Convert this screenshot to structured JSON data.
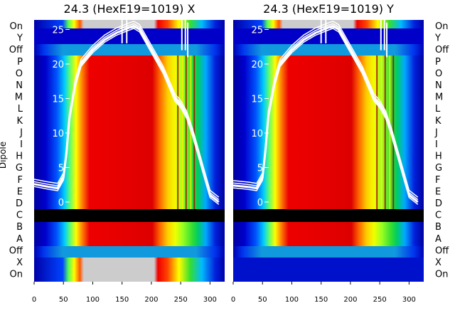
{
  "chart_data": [
    {
      "type": "heatmap",
      "title": "24.3 (HexE19=1019) X",
      "xlabel": "",
      "ylabel": "Dipole",
      "xlim": [
        0,
        325
      ],
      "xticks": [
        0,
        50,
        100,
        150,
        200,
        250,
        300
      ],
      "ylim": [
        -1.5,
        27
      ],
      "yticks": [
        0,
        5,
        10,
        15,
        20,
        25
      ],
      "dipole_rows": [
        "On",
        "Y",
        "Off",
        "P",
        "O",
        "N",
        "M",
        "L",
        "K",
        "J",
        "I",
        "H",
        "G",
        "F",
        "E",
        "D",
        "C",
        "B",
        "A",
        "Off",
        "X",
        "On"
      ],
      "colormap": "jet",
      "grid": false,
      "legend": "none",
      "overlay": {
        "type": "line",
        "color": "#ffffff",
        "x": [
          0,
          25,
          40,
          50,
          55,
          60,
          70,
          80,
          100,
          120,
          140,
          160,
          170,
          180,
          200,
          220,
          230,
          240,
          250,
          260,
          270,
          280,
          290,
          300,
          315
        ],
        "y": [
          2.6,
          2.2,
          2.0,
          3.5,
          7.0,
          12.0,
          17.0,
          20.0,
          22.0,
          23.5,
          24.5,
          25.2,
          25.5,
          25.0,
          22.0,
          19.0,
          17.0,
          15.0,
          14.0,
          12.5,
          10.0,
          7.0,
          4.0,
          1.0,
          0.0
        ]
      }
    },
    {
      "type": "heatmap",
      "title": "24.3 (HexE19=1019) Y",
      "xlabel": "",
      "ylabel": "",
      "xlim": [
        0,
        325
      ],
      "xticks": [
        0,
        50,
        100,
        150,
        200,
        250,
        300
      ],
      "ylim": [
        -1.5,
        27
      ],
      "yticks": [
        0,
        5,
        10,
        15,
        20,
        25
      ],
      "dipole_rows": [
        "On",
        "Y",
        "Off",
        "P",
        "O",
        "N",
        "M",
        "L",
        "K",
        "J",
        "I",
        "H",
        "G",
        "F",
        "E",
        "D",
        "C",
        "B",
        "A",
        "Off",
        "X",
        "On"
      ],
      "colormap": "jet",
      "grid": false,
      "legend": "none",
      "overlay": {
        "type": "line",
        "color": "#ffffff",
        "x": [
          0,
          25,
          40,
          50,
          55,
          60,
          70,
          80,
          100,
          120,
          140,
          160,
          170,
          180,
          200,
          220,
          230,
          240,
          250,
          260,
          270,
          280,
          290,
          300,
          315
        ],
        "y": [
          2.4,
          2.2,
          2.0,
          3.5,
          7.5,
          12.5,
          17.0,
          20.0,
          22.0,
          23.5,
          24.5,
          25.2,
          25.5,
          25.0,
          22.0,
          19.0,
          17.0,
          15.0,
          14.0,
          12.5,
          10.0,
          7.0,
          4.0,
          1.0,
          0.0
        ]
      }
    }
  ]
}
